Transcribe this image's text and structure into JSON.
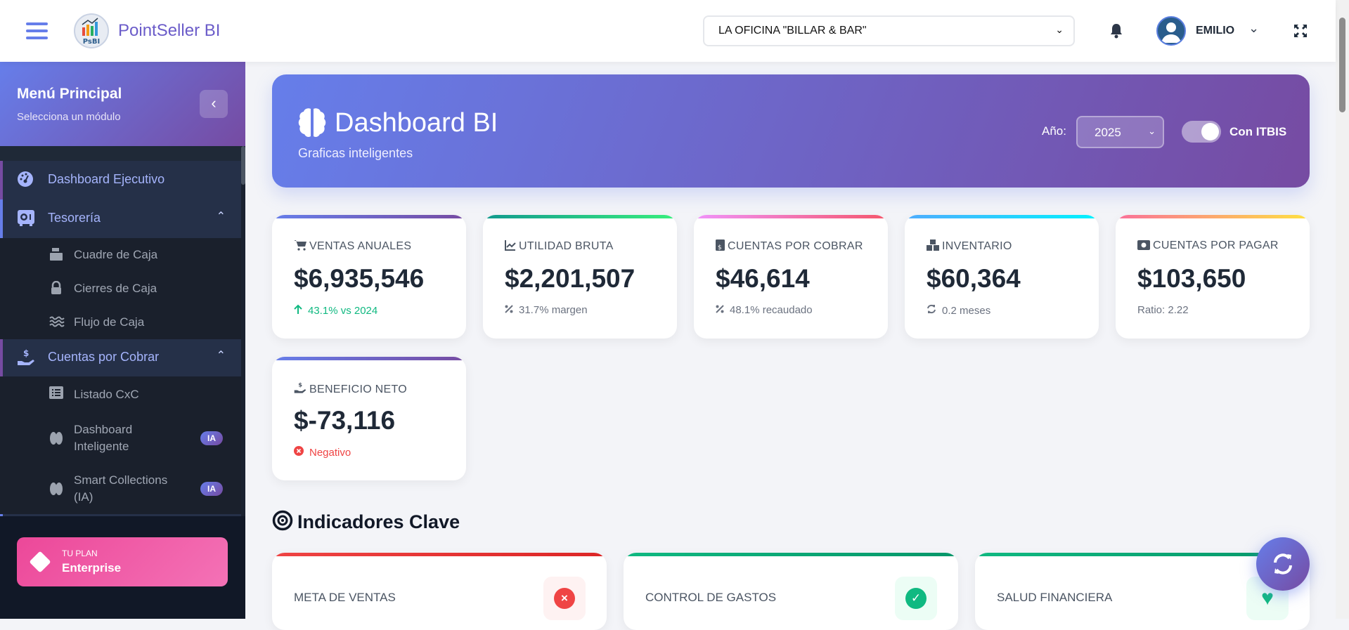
{
  "header": {
    "brand": "PointSeller BI",
    "logo_text": "PsBI",
    "store_select": "LA OFICINA \"BILLAR & BAR\"",
    "user": "EMILIO"
  },
  "sidebar": {
    "title": "Menú Principal",
    "subtitle": "Selecciona un módulo",
    "items": [
      {
        "label": "Dashboard Ejecutivo",
        "icon": "gauge-icon"
      },
      {
        "label": "Tesorería",
        "icon": "vault-icon",
        "sub": [
          {
            "label": "Cuadre de Caja",
            "icon": "cash-register-icon"
          },
          {
            "label": "Cierres de Caja",
            "icon": "lock-icon"
          },
          {
            "label": "Flujo de Caja",
            "icon": "water-icon"
          }
        ]
      },
      {
        "label": "Cuentas por Cobrar",
        "icon": "hand-dollar-icon",
        "sub": [
          {
            "label": "Listado CxC",
            "icon": "list-icon"
          },
          {
            "label": "Dashboard Inteligente",
            "line1": "Dashboard",
            "line2": "Inteligente",
            "badge": "IA",
            "icon": "brain-icon"
          },
          {
            "label": "Smart Collections (IA)",
            "line1": "Smart Collections",
            "line2": "(IA)",
            "badge": "IA",
            "icon": "brain-icon"
          }
        ]
      }
    ],
    "plan": {
      "label": "TU PLAN",
      "value": "Enterprise"
    }
  },
  "hero": {
    "title": "Dashboard BI",
    "subtitle": "Graficas inteligentes",
    "year_label": "Año:",
    "year": "2025",
    "toggle_label": "Con ITBIS",
    "toggle_on": true
  },
  "kpis": [
    {
      "label": "VENTAS ANUALES",
      "value": "$6,935,546",
      "sub": "43.1% vs 2024",
      "icon": "cart-icon",
      "sub_icon": "arrow-up-icon",
      "sub_color": "#10b981",
      "gradient": [
        "#667eea",
        "#764ba2"
      ]
    },
    {
      "label": "UTILIDAD BRUTA",
      "value": "$2,201,507",
      "sub": "31.7% margen",
      "icon": "chart-line-icon",
      "sub_icon": "percent-icon",
      "sub_color": "#6b7280",
      "gradient": [
        "#11998e",
        "#38ef7d"
      ]
    },
    {
      "label": "CUENTAS POR COBRAR",
      "value": "$46,614",
      "sub": "48.1% recaudado",
      "icon": "invoice-dollar-icon",
      "sub_icon": "percent-icon",
      "sub_color": "#6b7280",
      "gradient": [
        "#f093fb",
        "#f5576c"
      ]
    },
    {
      "label": "INVENTARIO",
      "value": "$60,364",
      "sub": "0.2 meses",
      "icon": "boxes-icon",
      "sub_icon": "sync-icon",
      "sub_color": "#6b7280",
      "gradient": [
        "#4facfe",
        "#00f2fe"
      ]
    },
    {
      "label": "CUENTAS POR PAGAR",
      "value": "$103,650",
      "sub": "Ratio: 2.22",
      "icon": "money-bill-icon",
      "sub_icon": "",
      "sub_color": "#6b7280",
      "gradient": [
        "#fa709a",
        "#fee140"
      ]
    },
    {
      "label": "BENEFICIO NETO",
      "value": "$-73,116",
      "sub": "Negativo",
      "icon": "hand-dollar-icon",
      "sub_icon": "x-circle-icon",
      "sub_color": "#ef4444",
      "gradient": [
        "#667eea",
        "#764ba2"
      ]
    }
  ],
  "indicators": {
    "title": "Indicadores Clave",
    "items": [
      {
        "label": "META DE VENTAS",
        "status": "fail",
        "color": "#ef4444"
      },
      {
        "label": "CONTROL DE GASTOS",
        "status": "ok",
        "color": "#10b981"
      },
      {
        "label": "SALUD FINANCIERA",
        "status": "health",
        "color": "#10b981"
      }
    ]
  }
}
